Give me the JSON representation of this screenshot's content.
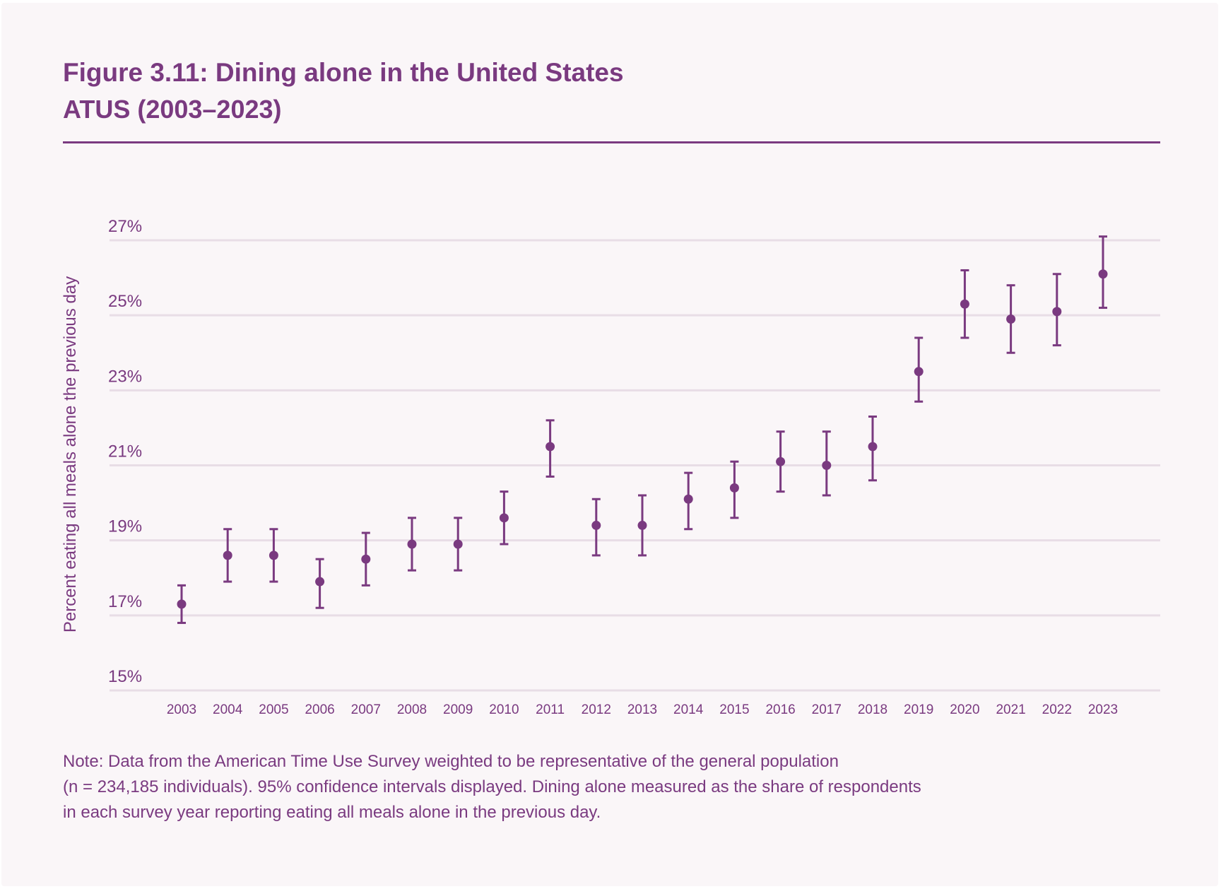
{
  "colors": {
    "accent": "#7a3a80",
    "grid": "#e8dde6",
    "background": "#faf6f8"
  },
  "chart_data": {
    "type": "scatter",
    "title": "Figure 3.11: Dining alone in the United States",
    "subtitle": "ATUS (2003–2023)",
    "ylabel": "Percent eating all meals alone the previous day",
    "xlabel": "",
    "ylim": [
      15,
      27
    ],
    "yticks": [
      15,
      17,
      19,
      21,
      23,
      25,
      27
    ],
    "ytick_labels": [
      "15%",
      "17%",
      "19%",
      "21%",
      "23%",
      "25%",
      "27%"
    ],
    "grid": true,
    "error_bars": "95% confidence intervals",
    "x": [
      "2003",
      "2004",
      "2005",
      "2006",
      "2007",
      "2008",
      "2009",
      "2010",
      "2011",
      "2012",
      "2013",
      "2014",
      "2015",
      "2016",
      "2017",
      "2018",
      "2019",
      "2020",
      "2021",
      "2022",
      "2023"
    ],
    "values": [
      17.3,
      18.6,
      18.6,
      17.9,
      18.5,
      18.9,
      18.9,
      19.6,
      21.5,
      19.4,
      19.4,
      20.1,
      20.4,
      21.1,
      21.0,
      21.5,
      23.5,
      25.3,
      24.9,
      25.1,
      26.1
    ],
    "lower": [
      16.8,
      17.9,
      17.9,
      17.2,
      17.8,
      18.2,
      18.2,
      18.9,
      20.7,
      18.6,
      18.6,
      19.3,
      19.6,
      20.3,
      20.2,
      20.6,
      22.7,
      24.4,
      24.0,
      24.2,
      25.2
    ],
    "upper": [
      17.8,
      19.3,
      19.3,
      18.5,
      19.2,
      19.6,
      19.6,
      20.3,
      22.2,
      20.1,
      20.2,
      20.8,
      21.1,
      21.9,
      21.9,
      22.3,
      24.4,
      26.2,
      25.8,
      26.1,
      27.1
    ]
  },
  "note": {
    "line1": "Note: Data from the American Time Use Survey weighted to be representative of the general population",
    "line2": "(n = 234,185 individuals). 95% confidence intervals displayed. Dining alone measured as the share of respondents",
    "line3": "in each survey year reporting eating all meals alone in the previous day."
  }
}
